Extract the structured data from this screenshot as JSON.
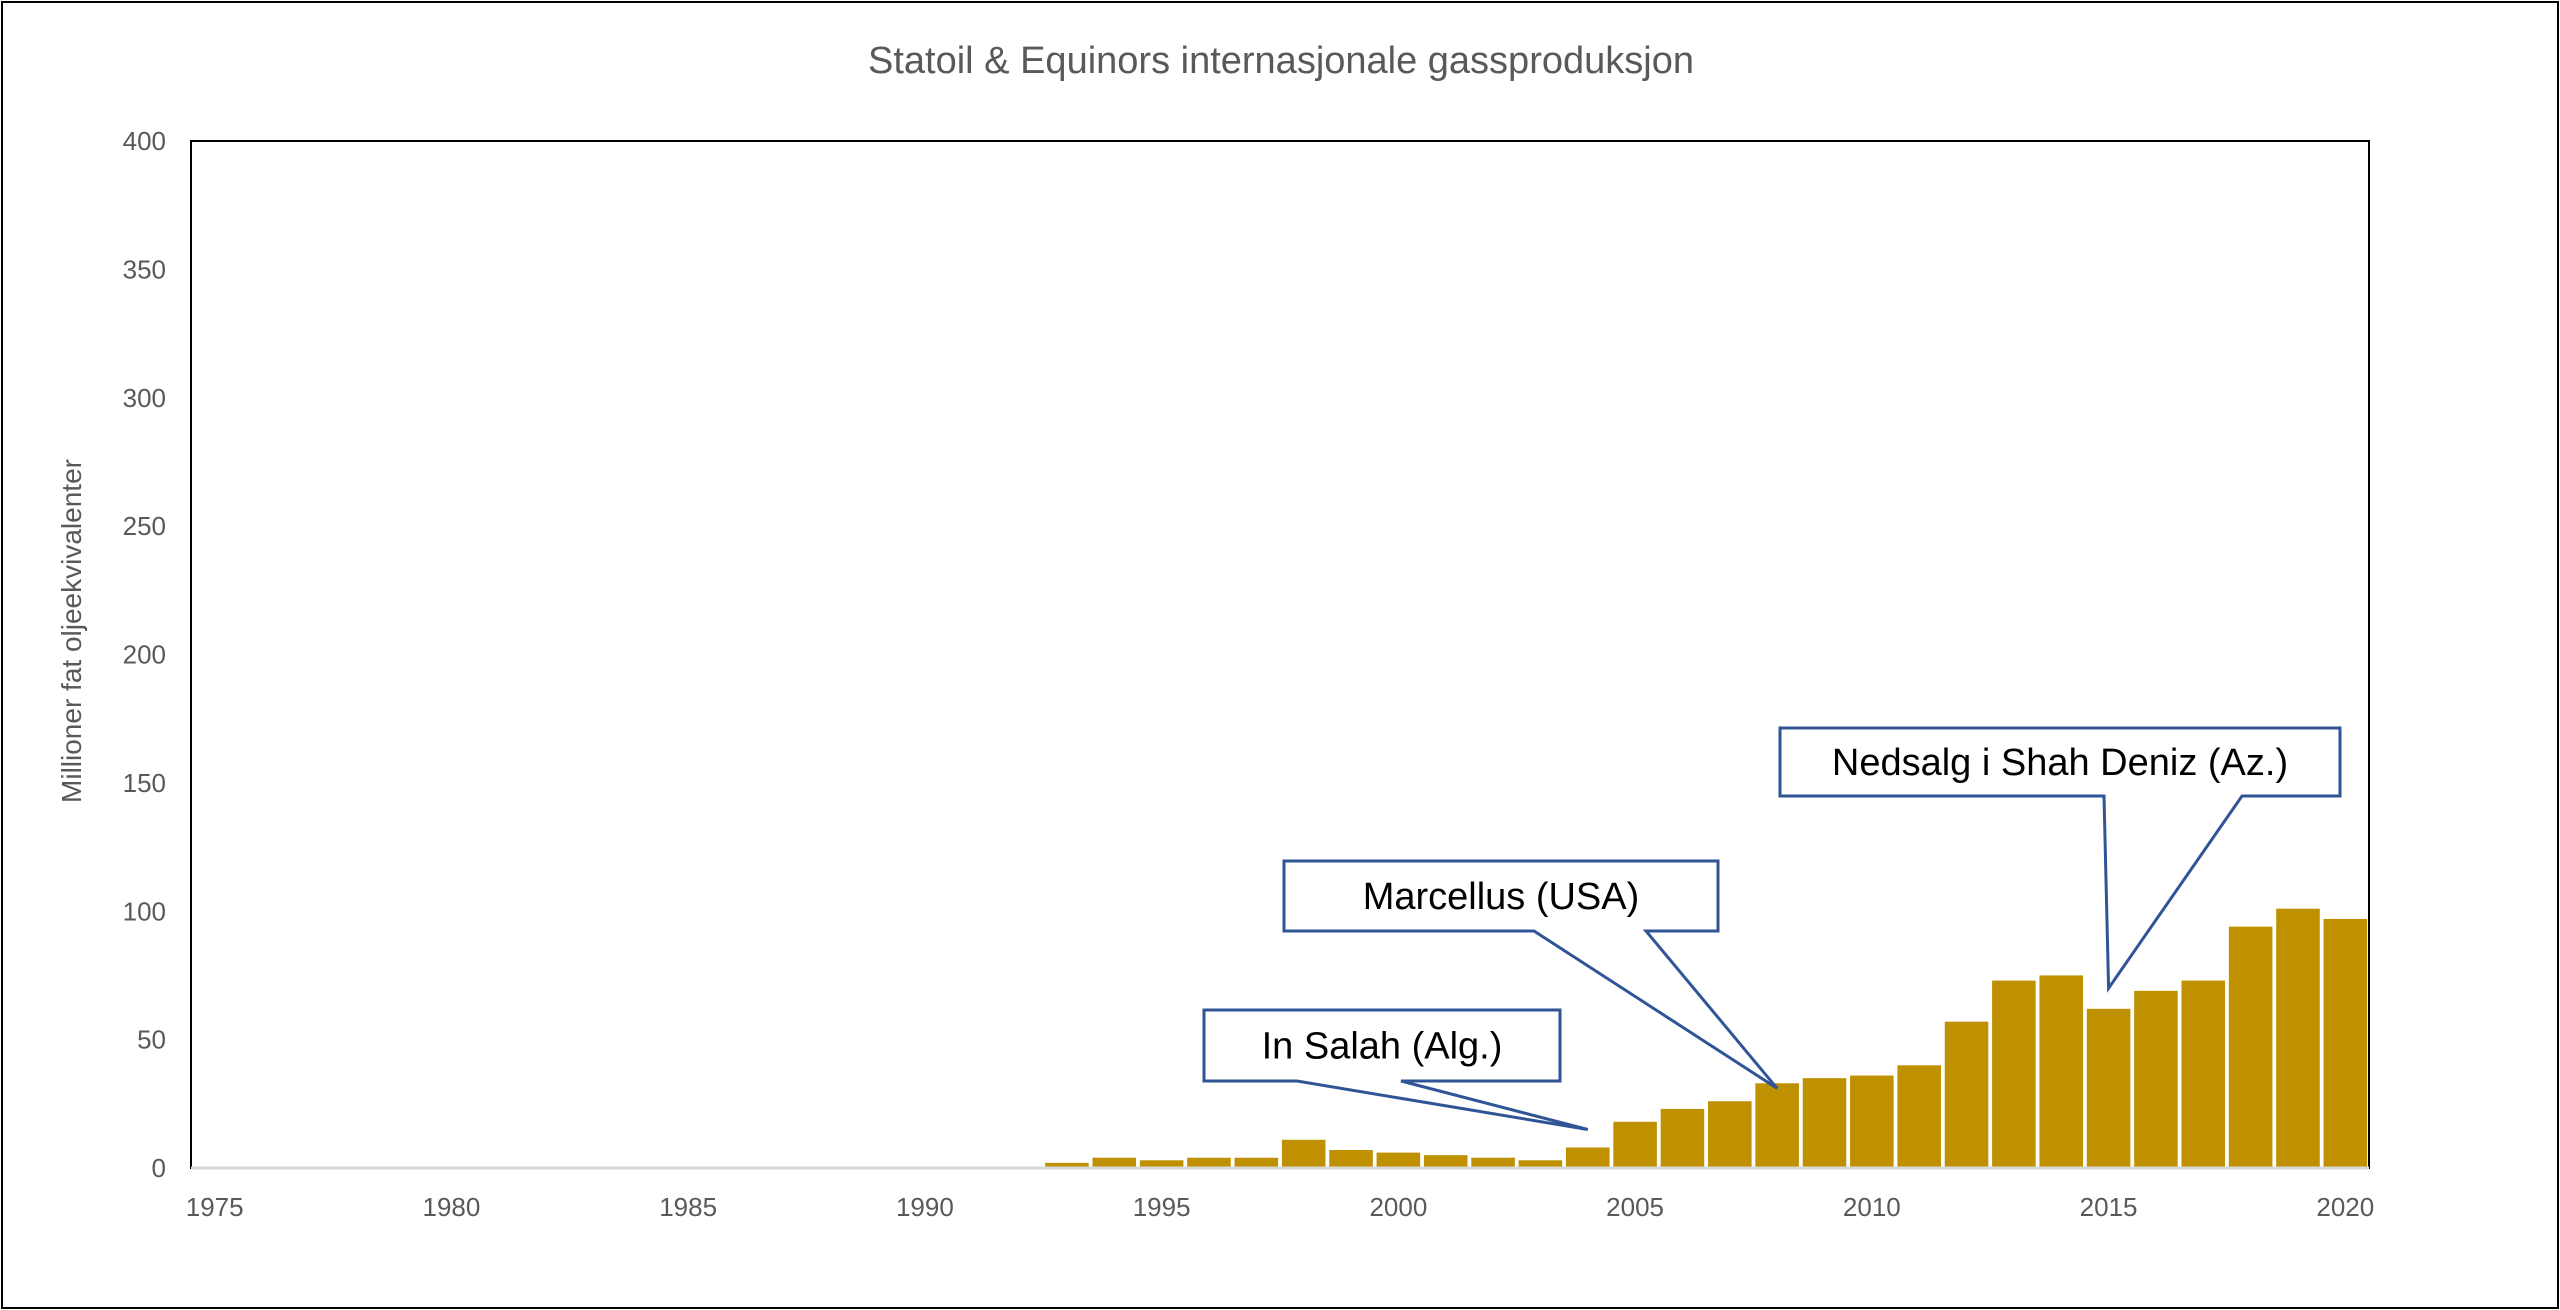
{
  "chart_data": {
    "type": "bar",
    "title": "Statoil & Equinors internasjonale gassproduksjon",
    "xlabel": "",
    "ylabel": "Millioner fat oljeekvivalenter",
    "ylim": [
      0,
      400
    ],
    "xlim": [
      1975,
      2020
    ],
    "yticks": [
      0,
      50,
      100,
      150,
      200,
      250,
      300,
      350,
      400
    ],
    "xticks": [
      1975,
      1980,
      1985,
      1990,
      1995,
      2000,
      2005,
      2010,
      2015,
      2020
    ],
    "grid": false,
    "legend": "none",
    "bar_color": "#BF9000",
    "callout_color": "#2F5597",
    "x": [
      1993,
      1994,
      1995,
      1996,
      1997,
      1998,
      1999,
      2000,
      2001,
      2002,
      2003,
      2004,
      2005,
      2006,
      2007,
      2008,
      2009,
      2010,
      2011,
      2012,
      2013,
      2014,
      2015,
      2016,
      2017,
      2018,
      2019,
      2020
    ],
    "values": [
      2,
      4,
      3,
      4,
      4,
      11,
      7,
      6,
      5,
      4,
      3,
      8,
      18,
      23,
      26,
      33,
      35,
      36,
      40,
      57,
      73,
      75,
      62,
      69,
      73,
      94,
      101,
      97
    ],
    "annotations": [
      {
        "text": "In Salah (Alg.)",
        "year": 2004,
        "value": 15
      },
      {
        "text": "Marcellus  (USA)",
        "year": 2008,
        "value": 31
      },
      {
        "text": "Nedsalg i Shah Deniz (Az.)",
        "year": 2015,
        "value": 70
      }
    ]
  }
}
